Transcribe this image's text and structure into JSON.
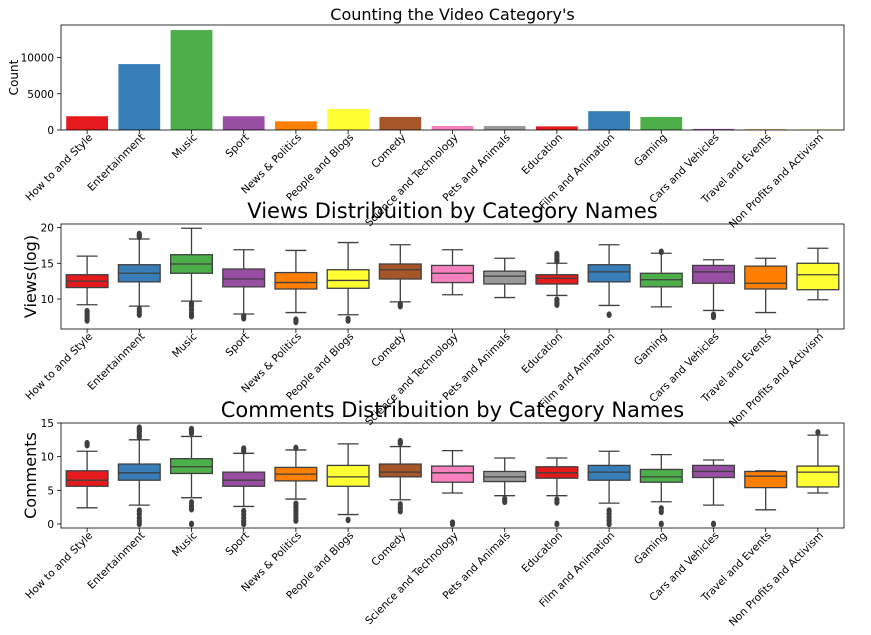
{
  "categories": [
    "How to and Style",
    "Entertainment",
    "Music",
    "Sport",
    "News & Politics",
    "People and Blogs",
    "Comedy",
    "Science and Technology",
    "Pets and Animals",
    "Education",
    "Film and Animation",
    "Gaming",
    "Cars and Vehicles",
    "Travel and Events",
    "Non Profits and Activism"
  ],
  "colors": [
    "#e41a1c",
    "#377eb8",
    "#4daf4a",
    "#984ea3",
    "#ff7f00",
    "#ffff33",
    "#a65628",
    "#f781bf",
    "#999999",
    "#e41a1c",
    "#377eb8",
    "#4daf4a",
    "#984ea3",
    "#ff7f00",
    "#ffff33"
  ],
  "chart_data": [
    {
      "type": "bar",
      "title": "Counting the Video Category's",
      "xlabel": "",
      "ylabel": "Count",
      "ylim": [
        0,
        14500
      ],
      "yticks": [
        0,
        5000,
        10000
      ],
      "categories": [
        "How to and Style",
        "Entertainment",
        "Music",
        "Sport",
        "News & Politics",
        "People and Blogs",
        "Comedy",
        "Science and Technology",
        "Pets and Animals",
        "Education",
        "Film and Animation",
        "Gaming",
        "Cars and Vehicles",
        "Travel and Events",
        "Non Profits and Activism"
      ],
      "values": [
        1900,
        9100,
        13800,
        1900,
        1200,
        2900,
        1800,
        550,
        550,
        500,
        2600,
        1800,
        150,
        100,
        80
      ]
    },
    {
      "type": "box",
      "title": "Views Distribuition by Category Names",
      "xlabel": "",
      "ylabel": "Views(log)",
      "ylim": [
        5.8,
        20.5
      ],
      "yticks": [
        10,
        15,
        20
      ],
      "categories": [
        "How to and Style",
        "Entertainment",
        "Music",
        "Sport",
        "News & Politics",
        "People and Blogs",
        "Comedy",
        "Science and Technology",
        "Pets and Animals",
        "Education",
        "Film and Animation",
        "Gaming",
        "Cars and Vehicles",
        "Travel and Events",
        "Non Profits and Activism"
      ],
      "boxes": [
        {
          "whislo": 9.2,
          "q1": 11.6,
          "med": 12.5,
          "q3": 13.4,
          "whishi": 16.0,
          "fliers": [
            7.0,
            7.3,
            7.6,
            8.0,
            8.3
          ]
        },
        {
          "whislo": 9.0,
          "q1": 12.4,
          "med": 13.6,
          "q3": 14.8,
          "whishi": 18.4,
          "fliers": [
            7.8,
            8.2,
            8.6,
            18.7,
            18.9,
            19.1
          ]
        },
        {
          "whislo": 9.7,
          "q1": 13.6,
          "med": 14.9,
          "q3": 16.2,
          "whishi": 19.9,
          "fliers": [
            7.6,
            8.0,
            8.5,
            9.0,
            9.4
          ]
        },
        {
          "whislo": 7.9,
          "q1": 11.7,
          "med": 12.8,
          "q3": 14.2,
          "whishi": 16.9,
          "fliers": [
            7.3,
            7.6
          ]
        },
        {
          "whislo": 8.1,
          "q1": 11.4,
          "med": 12.3,
          "q3": 13.7,
          "whishi": 16.8,
          "fliers": [
            6.8,
            7.1
          ]
        },
        {
          "whislo": 7.8,
          "q1": 11.5,
          "med": 12.6,
          "q3": 14.1,
          "whishi": 17.9,
          "fliers": [
            7.0,
            7.2
          ]
        },
        {
          "whislo": 9.6,
          "q1": 12.8,
          "med": 14.1,
          "q3": 14.9,
          "whishi": 17.6,
          "fliers": [
            9.0,
            9.3
          ]
        },
        {
          "whislo": 10.6,
          "q1": 12.3,
          "med": 13.6,
          "q3": 14.7,
          "whishi": 16.9,
          "fliers": []
        },
        {
          "whislo": 10.2,
          "q1": 12.1,
          "med": 13.2,
          "q3": 13.9,
          "whishi": 15.7,
          "fliers": []
        },
        {
          "whislo": 10.5,
          "q1": 12.1,
          "med": 12.9,
          "q3": 13.4,
          "whishi": 15.0,
          "fliers": [
            9.2,
            9.5,
            9.9,
            15.3,
            15.6,
            16.0,
            16.3
          ]
        },
        {
          "whislo": 9.1,
          "q1": 12.4,
          "med": 13.8,
          "q3": 14.8,
          "whishi": 17.6,
          "fliers": [
            7.8
          ]
        },
        {
          "whislo": 8.9,
          "q1": 11.7,
          "med": 12.7,
          "q3": 13.6,
          "whishi": 16.4,
          "fliers": [
            16.6
          ]
        },
        {
          "whislo": 8.4,
          "q1": 12.2,
          "med": 13.8,
          "q3": 14.7,
          "whishi": 15.5,
          "fliers": [
            7.5,
            7.8
          ]
        },
        {
          "whislo": 8.1,
          "q1": 11.4,
          "med": 12.2,
          "q3": 14.6,
          "whishi": 15.7,
          "fliers": []
        },
        {
          "whislo": 9.9,
          "q1": 11.3,
          "med": 13.4,
          "q3": 15.0,
          "whishi": 17.1,
          "fliers": []
        }
      ]
    },
    {
      "type": "box",
      "title": "Comments Distribuition by Category Names",
      "xlabel": "",
      "ylabel": "Comments",
      "ylim": [
        -0.6,
        15.0
      ],
      "yticks": [
        0,
        5,
        10,
        15
      ],
      "categories": [
        "How to and Style",
        "Entertainment",
        "Music",
        "Sport",
        "News & Politics",
        "People and Blogs",
        "Comedy",
        "Science and Technology",
        "Pets and Animals",
        "Education",
        "Film and Animation",
        "Gaming",
        "Cars and Vehicles",
        "Travel and Events",
        "Non Profits and Activism"
      ],
      "boxes": [
        {
          "whislo": 2.4,
          "q1": 5.6,
          "med": 6.5,
          "q3": 7.9,
          "whishi": 10.8,
          "fliers": [
            11.7,
            12.0
          ]
        },
        {
          "whislo": 2.8,
          "q1": 6.5,
          "med": 7.6,
          "q3": 8.9,
          "whishi": 12.5,
          "fliers": [
            0.0,
            0.4,
            0.9,
            1.5,
            2.0,
            12.9,
            13.3,
            13.7,
            14.0,
            14.3
          ]
        },
        {
          "whislo": 3.9,
          "q1": 7.5,
          "med": 8.5,
          "q3": 9.7,
          "whishi": 13.0,
          "fliers": [
            0.0,
            2.2,
            2.7,
            3.2,
            13.5,
            13.8,
            14.1
          ]
        },
        {
          "whislo": 2.6,
          "q1": 5.6,
          "med": 6.5,
          "q3": 7.7,
          "whishi": 10.5,
          "fliers": [
            0.0,
            0.4,
            0.9,
            1.4,
            1.9,
            10.8,
            11.2
          ]
        },
        {
          "whislo": 3.7,
          "q1": 6.4,
          "med": 7.4,
          "q3": 8.4,
          "whishi": 11.0,
          "fliers": [
            0.5,
            1.0,
            1.5,
            2.0,
            2.5,
            3.0,
            11.3
          ]
        },
        {
          "whislo": 1.4,
          "q1": 5.6,
          "med": 7.0,
          "q3": 8.7,
          "whishi": 11.9,
          "fliers": [
            0.6
          ]
        },
        {
          "whislo": 3.6,
          "q1": 7.0,
          "med": 7.7,
          "q3": 8.9,
          "whishi": 11.5,
          "fliers": [
            1.9,
            2.4,
            2.9,
            12.0,
            12.3
          ]
        },
        {
          "whislo": 4.6,
          "q1": 6.2,
          "med": 7.6,
          "q3": 8.6,
          "whishi": 10.9,
          "fliers": [
            0.0,
            0.2
          ]
        },
        {
          "whislo": 4.2,
          "q1": 6.3,
          "med": 7.0,
          "q3": 7.8,
          "whishi": 9.8,
          "fliers": [
            3.3,
            3.7
          ]
        },
        {
          "whislo": 4.2,
          "q1": 6.8,
          "med": 7.6,
          "q3": 8.5,
          "whishi": 9.8,
          "fliers": [
            0.0,
            3.2,
            3.6
          ]
        },
        {
          "whislo": 3.1,
          "q1": 6.5,
          "med": 7.7,
          "q3": 8.7,
          "whishi": 10.8,
          "fliers": [
            0.0,
            0.5,
            1.0,
            1.5,
            2.0
          ]
        },
        {
          "whislo": 3.3,
          "q1": 6.2,
          "med": 7.0,
          "q3": 8.1,
          "whishi": 10.3,
          "fliers": [
            0.0,
            1.8,
            2.3
          ]
        },
        {
          "whislo": 2.8,
          "q1": 6.9,
          "med": 7.8,
          "q3": 8.7,
          "whishi": 9.5,
          "fliers": [
            0.0
          ]
        },
        {
          "whislo": 2.1,
          "q1": 5.4,
          "med": 7.1,
          "q3": 7.8,
          "whishi": 7.9,
          "fliers": []
        },
        {
          "whislo": 4.6,
          "q1": 5.5,
          "med": 7.7,
          "q3": 8.6,
          "whishi": 13.2,
          "fliers": [
            13.6
          ]
        }
      ]
    }
  ]
}
